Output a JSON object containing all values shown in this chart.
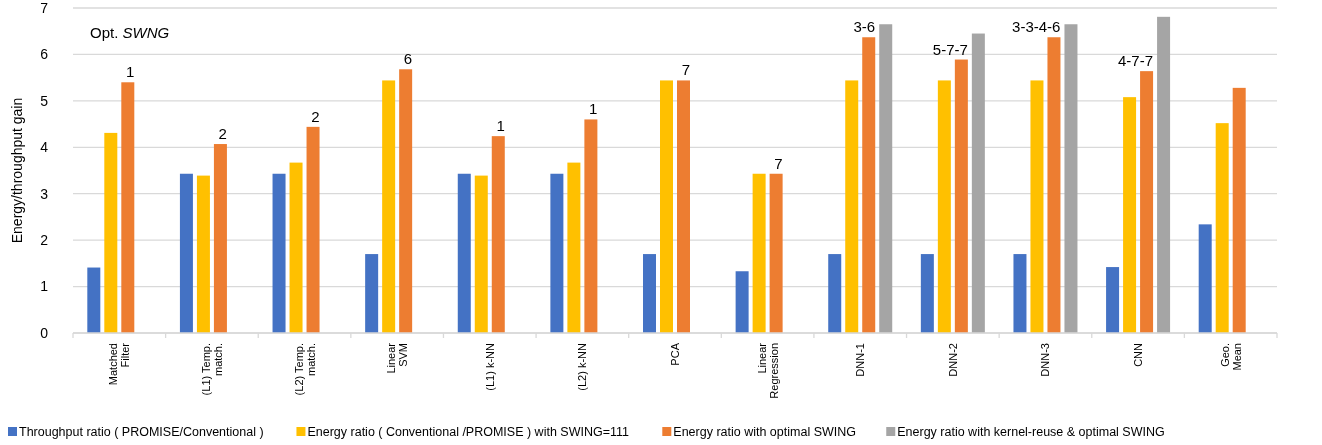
{
  "chart_data": {
    "type": "bar",
    "ylabel": "Energy/throughput gain",
    "categories": [
      "Matched\nFilter",
      "(L1) Temp.\nmatch.",
      "(L2) Temp.\nmatch.",
      "Linear\nSVM",
      "(L1) k-NN",
      "(L2) k-NN",
      "PCA",
      "Linear\nRegression",
      "DNN-1",
      "DNN-2",
      "DNN-3",
      "CNN",
      "Geo.\nMean"
    ],
    "series": [
      {
        "name": "Throughput ratio ( PROMISE/Conventional )",
        "color": "#4472c4",
        "values": [
          1.41,
          3.43,
          3.43,
          1.7,
          3.43,
          3.43,
          1.7,
          1.33,
          1.7,
          1.7,
          1.7,
          1.42,
          2.34
        ]
      },
      {
        "name": "Energy ratio ( Conventional /PROMISE ) with SWING=111",
        "color": "#ffc000",
        "values": [
          4.31,
          3.39,
          3.67,
          5.44,
          3.39,
          3.67,
          5.44,
          3.43,
          5.44,
          5.44,
          5.44,
          5.08,
          4.52
        ]
      },
      {
        "name": "Energy ratio with optimal SWING",
        "color": "#ed7d31",
        "values": [
          5.4,
          4.07,
          4.44,
          5.68,
          4.24,
          4.6,
          5.44,
          3.43,
          6.37,
          5.89,
          6.37,
          5.64,
          5.28
        ]
      },
      {
        "name": "Energy ratio with kernel-reuse & optimal SWING",
        "color": "#a5a5a5",
        "values": [
          null,
          null,
          null,
          null,
          null,
          null,
          null,
          null,
          6.65,
          6.45,
          6.65,
          6.81,
          null
        ]
      }
    ],
    "ylim": [
      0,
      7
    ],
    "yticks": [
      0,
      1,
      2,
      3,
      4,
      5,
      6,
      7
    ],
    "grid": "y",
    "legend": "bottom",
    "annotations": [
      "Opt. SWNG",
      {
        "text": "1",
        "x": "Matched\nFilter",
        "y": 5.4
      },
      {
        "text": "2",
        "x": "(L1) Temp.\nmatch.",
        "y": 4.07
      },
      {
        "text": "2",
        "x": "(L2) Temp.\nmatch.",
        "y": 4.44
      },
      {
        "text": "6",
        "x": "Linear\nSVM",
        "y": 5.68
      },
      {
        "text": "1",
        "x": "(L1) k-NN",
        "y": 4.24
      },
      {
        "text": "1",
        "x": "(L2) k-NN",
        "y": 4.6
      },
      {
        "text": "7",
        "x": "PCA",
        "y": 5.44
      },
      {
        "text": "7",
        "x": "Linear\nRegression",
        "y": 3.43
      },
      {
        "text": "3-6",
        "x": "DNN-1",
        "y": 6.37
      },
      {
        "text": "5-7-7",
        "x": "DNN-2",
        "y": 5.89
      },
      {
        "text": "3-3-4-6",
        "x": "DNN-3",
        "y": 6.37
      },
      {
        "text": "4-7-7",
        "x": "CNN",
        "y": 5.64
      }
    ]
  }
}
